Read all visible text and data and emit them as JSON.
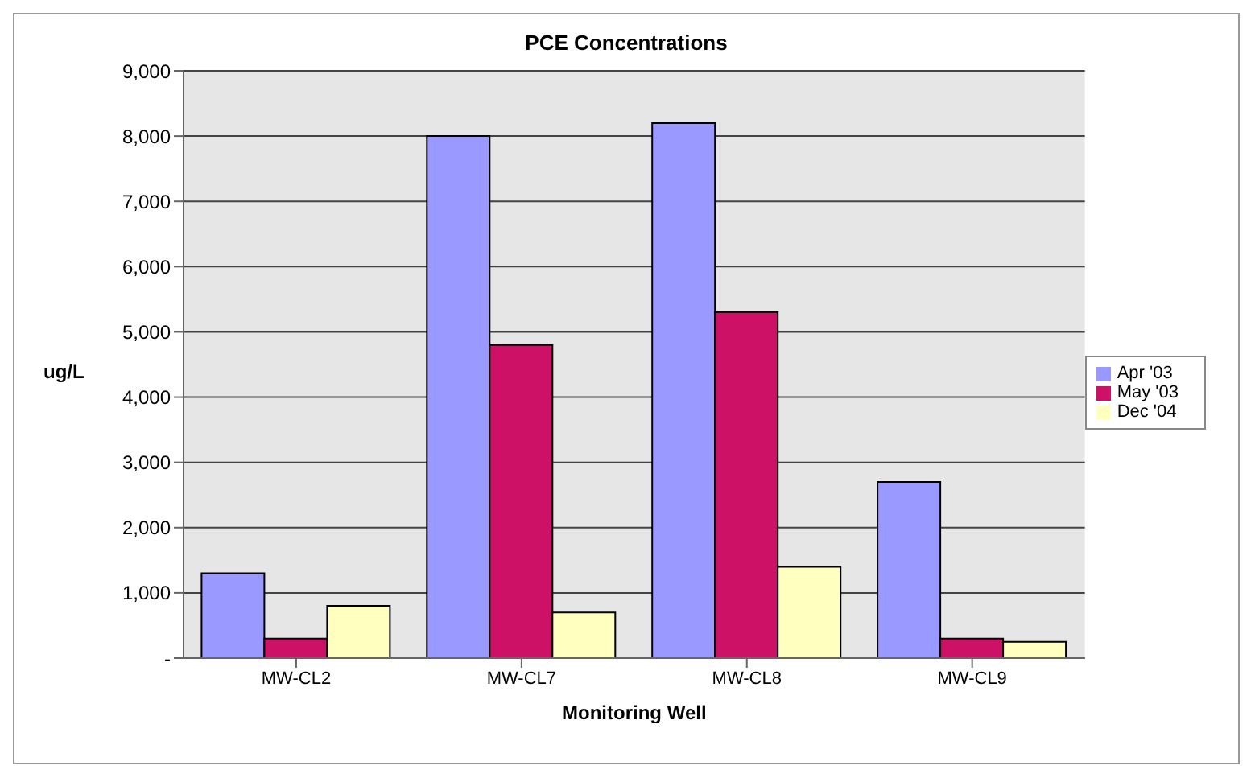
{
  "chart_data": {
    "type": "bar",
    "title": "PCE Concentrations",
    "xlabel": "Monitoring Well",
    "ylabel": "ug/L",
    "categories": [
      "MW-CL2",
      "MW-CL7",
      "MW-CL8",
      "MW-CL9"
    ],
    "series": [
      {
        "name": "Apr '03",
        "color": "#9999ff",
        "values": [
          1300,
          8000,
          8200,
          2700
        ]
      },
      {
        "name": "May '03",
        "color": "#cc1166",
        "values": [
          300,
          4800,
          5300,
          300
        ]
      },
      {
        "name": "Dec '04",
        "color": "#ffffc0",
        "values": [
          800,
          700,
          1400,
          250
        ]
      }
    ],
    "ylim": [
      0,
      9000
    ],
    "yticks": [
      {
        "value": 0,
        "label": "-"
      },
      {
        "value": 1000,
        "label": "1,000"
      },
      {
        "value": 2000,
        "label": "2,000"
      },
      {
        "value": 3000,
        "label": "3,000"
      },
      {
        "value": 4000,
        "label": "4,000"
      },
      {
        "value": 5000,
        "label": "5,000"
      },
      {
        "value": 6000,
        "label": "6,000"
      },
      {
        "value": 7000,
        "label": "7,000"
      },
      {
        "value": 8000,
        "label": "8,000"
      },
      {
        "value": 9000,
        "label": "9,000"
      }
    ],
    "grid": "y",
    "legend": "right"
  }
}
